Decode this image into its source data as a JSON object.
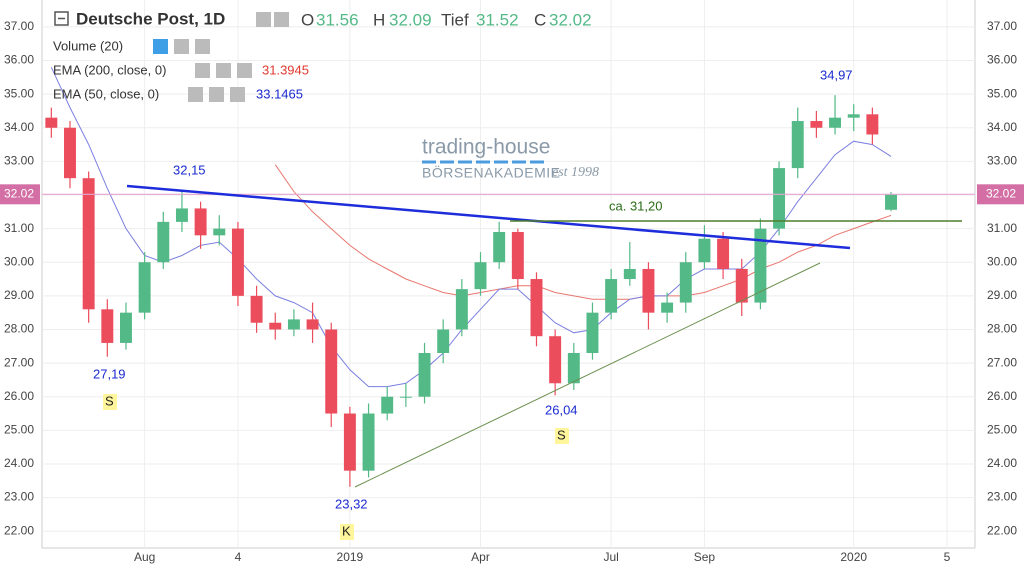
{
  "chart_data": {
    "type": "candlestick",
    "title": "Deutsche Post, 1D",
    "header": {
      "open_label": "O",
      "high_label": "H",
      "low_label": "Tief",
      "close_label": "C"
    },
    "indicators": {
      "volume": "Volume (20)",
      "ema200": "EMA (200, close, 0)",
      "ema50": "EMA (50, close, 0)"
    },
    "categories": [
      null,
      null,
      null,
      null,
      null,
      "Aug",
      null,
      null,
      null,
      null,
      "4",
      null,
      null,
      null,
      null,
      null,
      "2019",
      null,
      null,
      null,
      null,
      null,
      null,
      "Apr",
      null,
      null,
      null,
      null,
      null,
      null,
      "Jul",
      null,
      null,
      null,
      null,
      "Sep",
      null,
      null,
      null,
      null,
      null,
      null,
      null,
      "2020",
      null,
      null,
      null,
      null,
      "5",
      null
    ],
    "open": [
      34.3,
      34.0,
      32.5,
      28.6,
      27.6,
      28.5,
      30.0,
      31.2,
      31.6,
      30.8,
      31.0,
      29.0,
      28.2,
      28.0,
      28.3,
      28.0,
      25.5,
      23.8,
      25.5,
      26.0,
      26.0,
      27.3,
      28.0,
      29.2,
      30.0,
      30.9,
      29.5,
      27.8,
      26.4,
      27.3,
      28.5,
      29.5,
      29.8,
      28.5,
      28.8,
      30.0,
      30.7,
      29.8,
      28.8,
      31.0,
      32.8,
      34.2,
      34.0,
      34.3,
      34.4,
      31.56,
      null,
      null,
      null,
      null
    ],
    "high": [
      34.6,
      34.2,
      32.7,
      28.9,
      28.8,
      30.3,
      31.5,
      32.15,
      31.8,
      31.4,
      31.2,
      29.3,
      28.5,
      28.6,
      28.8,
      28.2,
      25.7,
      25.8,
      26.3,
      26.4,
      27.6,
      28.3,
      29.5,
      30.3,
      31.2,
      31.0,
      29.7,
      28.0,
      27.6,
      28.8,
      29.8,
      30.6,
      30.0,
      29.1,
      30.3,
      31.1,
      30.9,
      30.1,
      31.3,
      33.0,
      34.6,
      34.5,
      34.97,
      34.7,
      34.6,
      32.09,
      null,
      null,
      null,
      null
    ],
    "low": [
      33.7,
      32.2,
      28.2,
      27.19,
      27.4,
      28.3,
      29.8,
      30.9,
      30.4,
      30.5,
      28.7,
      27.9,
      27.7,
      27.8,
      27.6,
      25.1,
      23.32,
      23.6,
      25.3,
      25.7,
      25.8,
      27.0,
      27.8,
      29.0,
      29.8,
      29.2,
      27.5,
      26.04,
      26.2,
      27.1,
      28.3,
      29.3,
      28.0,
      28.2,
      28.5,
      29.8,
      29.5,
      28.4,
      28.6,
      30.8,
      32.5,
      33.7,
      33.8,
      33.9,
      33.5,
      31.52,
      null,
      null,
      null,
      null
    ],
    "close": [
      34.0,
      32.5,
      28.6,
      27.6,
      28.5,
      30.0,
      31.2,
      31.6,
      30.8,
      31.0,
      29.0,
      28.2,
      28.0,
      28.3,
      28.0,
      25.5,
      23.8,
      25.5,
      26.0,
      26.0,
      27.3,
      28.0,
      29.2,
      30.0,
      30.9,
      29.5,
      27.8,
      26.4,
      27.3,
      28.5,
      29.5,
      29.8,
      28.5,
      28.8,
      30.0,
      30.7,
      29.8,
      28.8,
      31.0,
      32.8,
      34.2,
      34.0,
      34.3,
      34.4,
      33.8,
      32.02,
      null,
      null,
      null,
      null
    ],
    "up_color": "#53b987",
    "down_color": "#eb4d5c",
    "series": [
      {
        "name": "EMA 200",
        "color": "#e8776f",
        "values": [
          null,
          null,
          null,
          null,
          null,
          null,
          null,
          null,
          null,
          null,
          null,
          null,
          32.9,
          32.1,
          31.5,
          31.0,
          30.5,
          30.1,
          29.8,
          29.5,
          29.3,
          29.1,
          29.0,
          29.1,
          29.2,
          29.3,
          29.3,
          29.1,
          29.0,
          28.9,
          28.9,
          28.9,
          29.0,
          29.0,
          29.0,
          29.1,
          29.3,
          29.5,
          29.8,
          30.0,
          30.3,
          30.5,
          30.8,
          31.0,
          31.2,
          31.3945,
          null,
          null,
          null,
          null
        ]
      },
      {
        "name": "EMA 50",
        "color": "#7b7fe0",
        "values": [
          35.8,
          34.6,
          33.5,
          32.2,
          31.0,
          30.2,
          30.0,
          30.2,
          30.5,
          30.6,
          30.1,
          29.5,
          29.0,
          28.8,
          28.5,
          27.5,
          26.8,
          26.3,
          26.3,
          26.4,
          26.8,
          27.3,
          28.0,
          28.6,
          29.2,
          29.2,
          28.7,
          28.2,
          27.9,
          28.0,
          28.5,
          28.9,
          29.0,
          29.0,
          29.5,
          29.8,
          29.8,
          29.8,
          30.3,
          31.0,
          31.8,
          32.5,
          33.2,
          33.6,
          33.5,
          33.1465,
          null,
          null,
          null,
          null
        ]
      }
    ],
    "ylim": [
      21.5,
      37.8
    ],
    "yticks": [
      {
        "value": 22,
        "label": "22.00"
      },
      {
        "value": 23,
        "label": "23.00"
      },
      {
        "value": 24,
        "label": "24.00"
      },
      {
        "value": 25,
        "label": "25.00"
      },
      {
        "value": 26,
        "label": "26.00"
      },
      {
        "value": 27,
        "label": "27.00"
      },
      {
        "value": 28,
        "label": "28.00"
      },
      {
        "value": 29,
        "label": "29.00"
      },
      {
        "value": 30,
        "label": "30.00"
      },
      {
        "value": 31,
        "label": "31.00"
      },
      {
        "value": 32,
        "label": "32.00"
      },
      {
        "value": 33,
        "label": "33.00"
      },
      {
        "value": 34,
        "label": "34.00"
      },
      {
        "value": 35,
        "label": "35.00"
      },
      {
        "value": 36,
        "label": "36.00"
      },
      {
        "value": 37,
        "label": "37.00"
      }
    ],
    "grid": true,
    "annotations": [
      "32,15",
      "27,19",
      "S",
      "23,32",
      "K",
      "26,04",
      "S",
      "34,97",
      "ca. 31,20"
    ],
    "watermark": {
      "brand": "trading-house",
      "sub": "BÖRSENAKADEMIE",
      "est": "est 1998"
    }
  }
}
